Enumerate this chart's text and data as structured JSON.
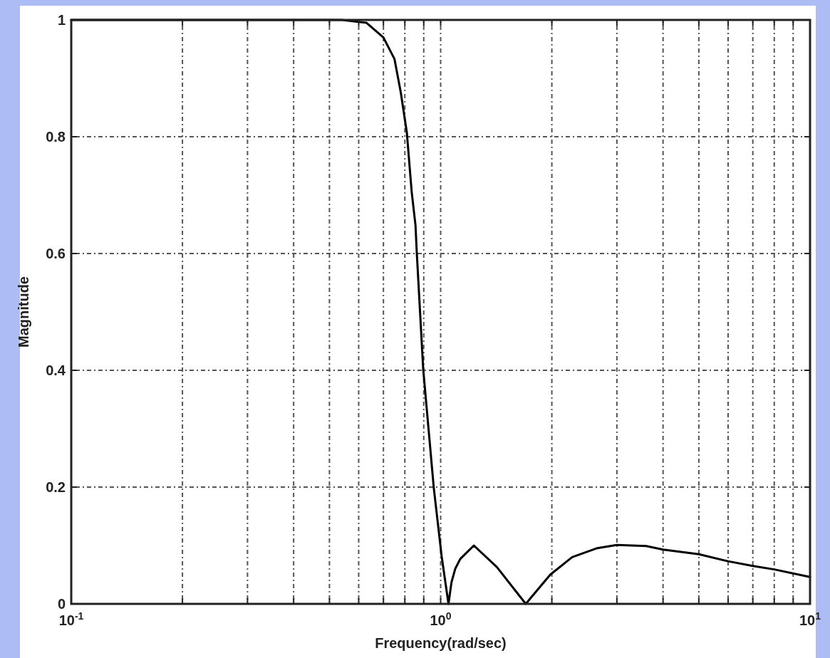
{
  "chart_data": {
    "type": "line",
    "xlabel": "Frequency(rad/sec)",
    "ylabel": "Magnitude",
    "log": "x",
    "grid": true,
    "marker": "none",
    "line_style": "solid",
    "xlim": [
      0.1,
      10
    ],
    "ylim": [
      0,
      1
    ],
    "xticks": [
      {
        "value": 0.1,
        "label": "10$^{-1}$"
      },
      {
        "value": 0.2,
        "label": null
      },
      {
        "value": 0.3,
        "label": null
      },
      {
        "value": 0.4,
        "label": null
      },
      {
        "value": 0.5,
        "label": null
      },
      {
        "value": 0.6,
        "label": null
      },
      {
        "value": 0.7,
        "label": null
      },
      {
        "value": 0.8,
        "label": null
      },
      {
        "value": 0.9,
        "label": null
      },
      {
        "value": 1,
        "label": "10$^{0}$"
      },
      {
        "value": 2,
        "label": null
      },
      {
        "value": 3,
        "label": null
      },
      {
        "value": 4,
        "label": null
      },
      {
        "value": 5,
        "label": null
      },
      {
        "value": 6,
        "label": null
      },
      {
        "value": 7,
        "label": null
      },
      {
        "value": 8,
        "label": null
      },
      {
        "value": 9,
        "label": null
      },
      {
        "value": 10,
        "label": "10$^{1}$"
      }
    ],
    "yticks": [
      0,
      0.2,
      0.4,
      0.6,
      0.8,
      1
    ],
    "series": [
      {
        "color": "#000000",
        "x": [
          0.1,
          0.3,
          0.54,
          0.63,
          0.7,
          0.75,
          0.78,
          0.81,
          0.835,
          0.855,
          0.862,
          0.897,
          0.958,
          1.006,
          1.05,
          1.07,
          1.095,
          1.13,
          1.23,
          1.42,
          1.7,
          1.98,
          2.27,
          2.64,
          3,
          3.6,
          4,
          5,
          6,
          7,
          8,
          10
        ],
        "values": [
          1,
          1,
          1,
          0.995,
          0.97,
          0.933,
          0.876,
          0.807,
          0.705,
          0.648,
          0.6,
          0.402,
          0.199,
          0.082,
          0,
          0.037,
          0.06,
          0.077,
          0.1,
          0.063,
          0,
          0.05,
          0.08,
          0.095,
          0.101,
          0.099,
          0.093,
          0.085,
          0.073,
          0.065,
          0.059,
          0.046
        ]
      }
    ]
  }
}
